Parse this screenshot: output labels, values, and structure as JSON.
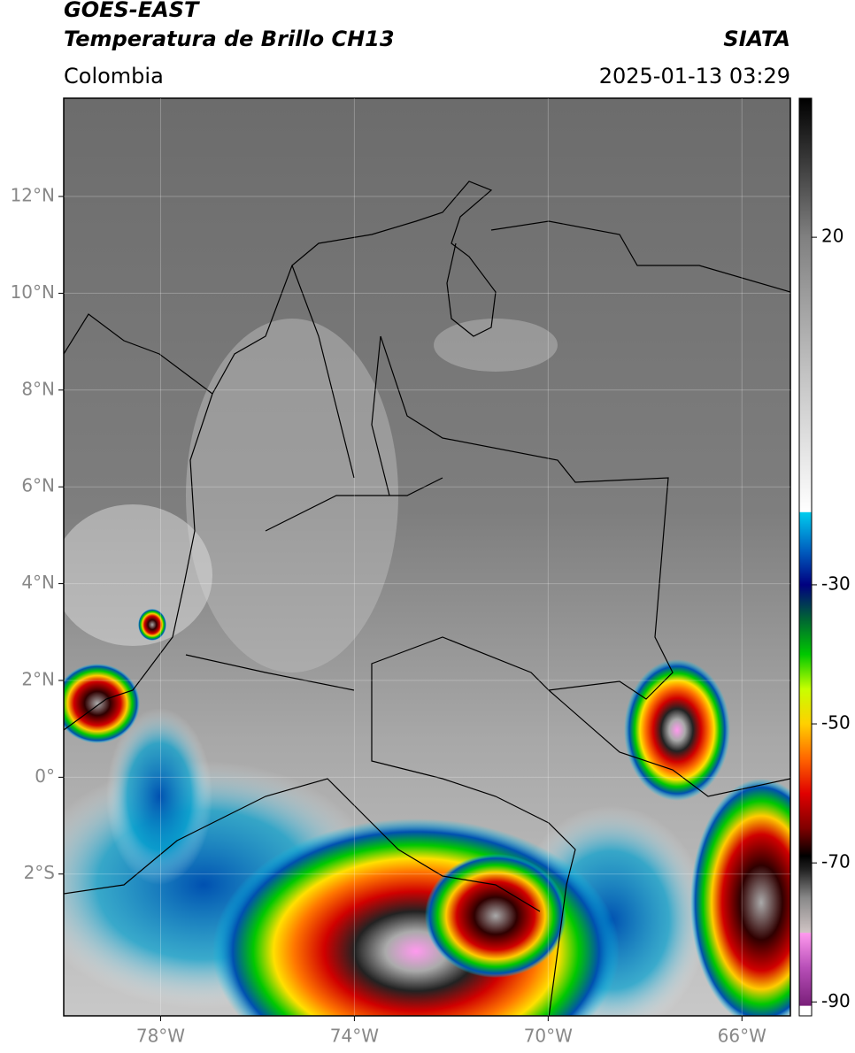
{
  "header": {
    "title": "GOES-EAST",
    "subtitle": "Temperatura de Brillo CH13",
    "source": "SIATA",
    "region": "Colombia",
    "datetime": "2025-01-13 03:29"
  },
  "map": {
    "lon_range": [
      -80,
      -65
    ],
    "lat_range": [
      -4.93,
      14.03
    ],
    "lon_ticks": [
      {
        "value": -78,
        "label": "78°W"
      },
      {
        "value": -74,
        "label": "74°W"
      },
      {
        "value": -70,
        "label": "70°W"
      },
      {
        "value": -66,
        "label": "66°W"
      }
    ],
    "lat_ticks": [
      {
        "value": 12,
        "label": "12°N"
      },
      {
        "value": 10,
        "label": "10°N"
      },
      {
        "value": 8,
        "label": "8°N"
      },
      {
        "value": 6,
        "label": "6°N"
      },
      {
        "value": 4,
        "label": "4°N"
      },
      {
        "value": 2,
        "label": "2°N"
      },
      {
        "value": 0,
        "label": "0°"
      },
      {
        "value": -2,
        "label": "2°S"
      }
    ],
    "grid": true
  },
  "colorbar": {
    "range": [
      -92,
      40
    ],
    "ticks": [
      20,
      -30,
      -50,
      -70,
      -90
    ],
    "colormap": [
      {
        "value": -92,
        "color": "#ffffff"
      },
      {
        "value": -90.6,
        "color": "#ffffff"
      },
      {
        "value": -90.5,
        "color": "#7a1f7a"
      },
      {
        "value": -85,
        "color": "#b84fb8"
      },
      {
        "value": -80.1,
        "color": "#ff99ee"
      },
      {
        "value": -80,
        "color": "#d0c4c4"
      },
      {
        "value": -75,
        "color": "#888888"
      },
      {
        "value": -71,
        "color": "#222222"
      },
      {
        "value": -69,
        "color": "#000000"
      },
      {
        "value": -65,
        "color": "#800000"
      },
      {
        "value": -60,
        "color": "#e00000"
      },
      {
        "value": -55,
        "color": "#ff6600"
      },
      {
        "value": -50,
        "color": "#ffd000"
      },
      {
        "value": -45,
        "color": "#c8ff00"
      },
      {
        "value": -40,
        "color": "#00c800"
      },
      {
        "value": -35,
        "color": "#006633"
      },
      {
        "value": -30,
        "color": "#000080"
      },
      {
        "value": -25,
        "color": "#0060c0"
      },
      {
        "value": -19.6,
        "color": "#00ccee"
      },
      {
        "value": -19.5,
        "color": "#ffffff"
      },
      {
        "value": 0,
        "color": "#c4c4c4"
      },
      {
        "value": 20,
        "color": "#808080"
      },
      {
        "value": 40,
        "color": "#000000"
      }
    ]
  }
}
